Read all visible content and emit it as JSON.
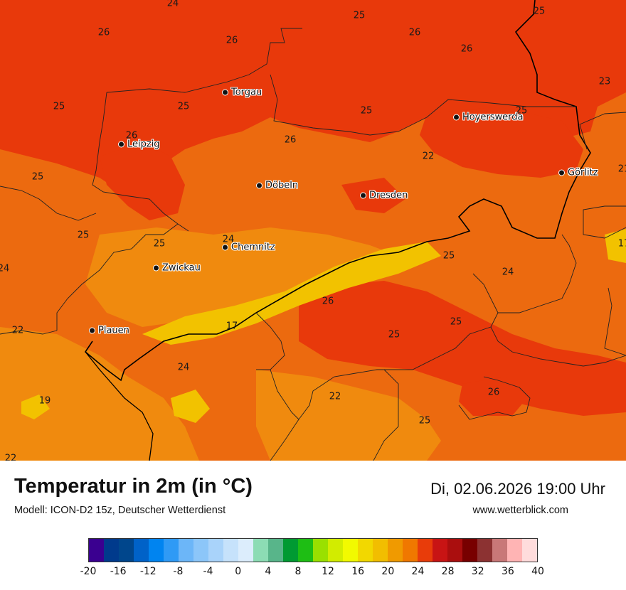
{
  "title": "Temperatur in 2m (in °C)",
  "subtitle": "Modell: ICON-D2 15z, Deutscher Wetterdienst",
  "datetime": "Di, 02.06.2026 19:00 Uhr",
  "site": "www.wetterblick.com",
  "map": {
    "cities": [
      {
        "name": "Torgau"
      },
      {
        "name": "Hoyerswerda"
      },
      {
        "name": "Leipzig"
      },
      {
        "name": "Döbeln"
      },
      {
        "name": "Dresden"
      },
      {
        "name": "Görlitz"
      },
      {
        "name": "Chemnitz"
      },
      {
        "name": "Zwickau"
      },
      {
        "name": "Plauen"
      }
    ],
    "values": [
      "24",
      "25",
      "25",
      "26",
      "26",
      "26",
      "26",
      "23",
      "25",
      "25",
      "25",
      "25",
      "26",
      "26",
      "22",
      "25",
      "21",
      "25",
      "24",
      "25",
      "17",
      "24",
      "24",
      "26",
      "25",
      "25",
      "22",
      "17",
      "24",
      "25",
      "26",
      "19",
      "22",
      "25",
      "22"
    ]
  },
  "legend": {
    "colors": [
      "#3a0090",
      "#003a8c",
      "#00468c",
      "#0062c8",
      "#0084f0",
      "#2f9af5",
      "#6cb6f8",
      "#8cc6f9",
      "#a9d3fa",
      "#c6e2fb",
      "#dcedfc",
      "#8cdcb4",
      "#58b58a",
      "#009a32",
      "#1ebe14",
      "#9ae000",
      "#d2ec00",
      "#f2fa00",
      "#f2d800",
      "#f2be00",
      "#f09a00",
      "#f07800",
      "#e83c0a",
      "#c81414",
      "#aa0e0e",
      "#780000",
      "#8c3232",
      "#c87878",
      "#ffb4b4",
      "#ffdcdc"
    ],
    "ticks": [
      "-20",
      "-16",
      "-12",
      "-8",
      "-4",
      "0",
      "4",
      "8",
      "12",
      "16",
      "20",
      "24",
      "28",
      "32",
      "36",
      "40"
    ]
  }
}
